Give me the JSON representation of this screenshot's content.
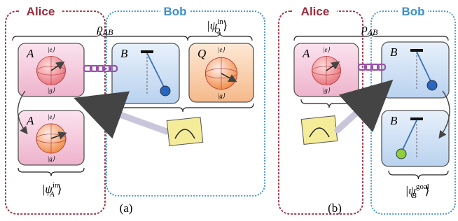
{
  "panels": [
    {
      "caption": "(a)",
      "parties": [
        "Alice",
        "Bob"
      ],
      "state": {
        "symbol": "ρ",
        "sub": "AB"
      },
      "qubits": [
        {
          "name": "A",
          "top": "|e⟩",
          "bottom": "|g⟩"
        },
        {
          "name": "Q",
          "top": "|e⟩",
          "bottom": "|g⟩"
        },
        {
          "name": "A",
          "top": "|e⟩",
          "bottom": "|g⟩"
        }
      ],
      "pendulums": [
        {
          "name": "B"
        }
      ],
      "kets": [
        {
          "open": "|ψ",
          "sup": "in",
          "sub": "Q",
          "close": "⟩"
        },
        {
          "open": "|ψ",
          "sup": "in",
          "sub": "A",
          "close": "⟩"
        }
      ]
    },
    {
      "caption": "(b)",
      "parties": [
        "Alice",
        "Bob"
      ],
      "state": {
        "symbol": "ρ",
        "sub": "AB"
      },
      "qubits": [
        {
          "name": "A",
          "top": "|e⟩",
          "bottom": "|g⟩"
        }
      ],
      "pendulums": [
        {
          "name": "B"
        },
        {
          "name": "B"
        }
      ],
      "kets": [
        {
          "open": "|ψ",
          "sup": "goal",
          "sub": "B",
          "close": "⟩"
        }
      ]
    }
  ]
}
